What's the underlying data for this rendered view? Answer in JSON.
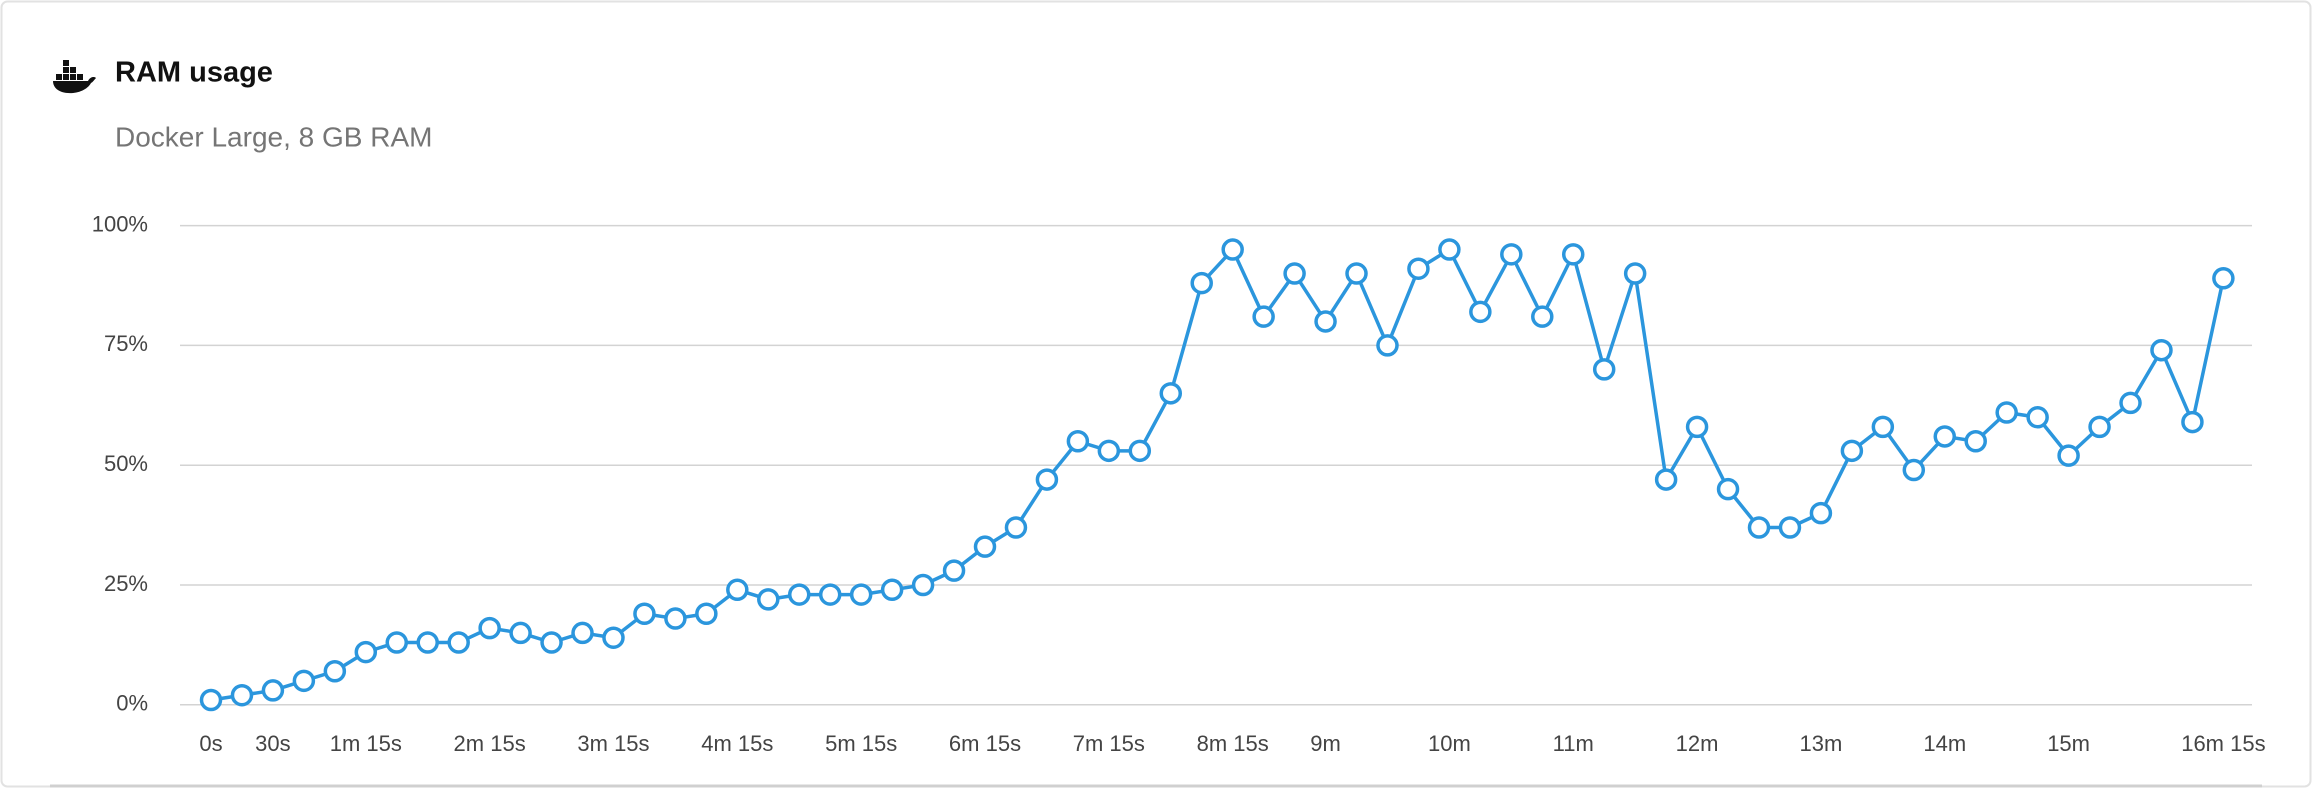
{
  "chart_data": {
    "type": "line",
    "title": "RAM usage",
    "subtitle": "Docker Large, 8 GB RAM",
    "categories": [
      "0s",
      null,
      "30s",
      null,
      null,
      "1m 15s",
      null,
      null,
      null,
      "2m 15s",
      null,
      null,
      null,
      "3m 15s",
      null,
      null,
      null,
      "4m 15s",
      null,
      null,
      null,
      "5m 15s",
      null,
      null,
      null,
      "6m 15s",
      null,
      null,
      null,
      "7m 15s",
      null,
      null,
      null,
      "8m 15s",
      null,
      null,
      "9m",
      null,
      null,
      null,
      "10m",
      null,
      null,
      null,
      "11m",
      null,
      null,
      null,
      "12m",
      null,
      null,
      null,
      "13m",
      null,
      null,
      null,
      "14m",
      null,
      null,
      null,
      "15m",
      null,
      null,
      null,
      null,
      "16m 15s"
    ],
    "series": [
      {
        "name": "RAM usage",
        "color": "#2b96dd",
        "values": [
          1,
          2,
          3,
          5,
          7,
          11,
          13,
          13,
          13,
          16,
          15,
          13,
          15,
          14,
          19,
          18,
          19,
          24,
          22,
          23,
          23,
          23,
          24,
          25,
          28,
          33,
          37,
          47,
          55,
          53,
          53,
          65,
          88,
          95,
          81,
          90,
          80,
          90,
          75,
          91,
          95,
          82,
          94,
          81,
          94,
          70,
          90,
          47,
          58,
          45,
          37,
          37,
          40,
          53,
          58,
          49,
          56,
          55,
          61,
          60,
          52,
          58,
          63,
          74,
          59,
          89
        ]
      }
    ],
    "ylim": [
      0,
      100
    ],
    "yticks": [
      {
        "value": 0,
        "label": "0%"
      },
      {
        "value": 25,
        "label": "25%"
      },
      {
        "value": 50,
        "label": "50%"
      },
      {
        "value": 75,
        "label": "75%"
      },
      {
        "value": 100,
        "label": "100%"
      }
    ],
    "grid": true
  }
}
